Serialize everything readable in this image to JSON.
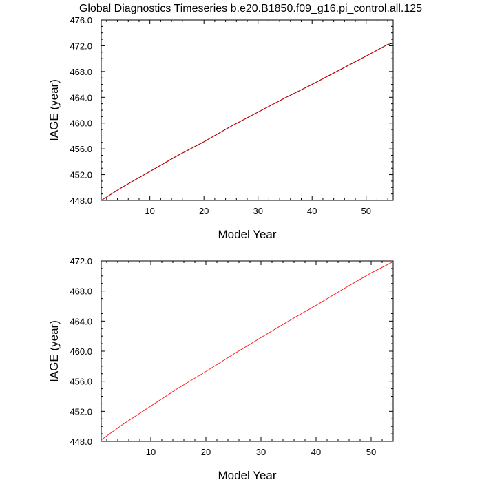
{
  "title": "Global Diagnostics Timeseries b.e20.B1850.f09_g16.pi_control.all.125",
  "chart_data": [
    {
      "type": "line",
      "xlabel": "Model Year",
      "ylabel": "IAGE (year)",
      "xlim": [
        1,
        55
      ],
      "ylim": [
        448.0,
        476.0
      ],
      "xticks": [
        10,
        20,
        30,
        40,
        50
      ],
      "xtick_labels": [
        "10",
        "20",
        "30",
        "40",
        "50"
      ],
      "yticks": [
        448,
        452,
        456,
        460,
        464,
        468,
        472,
        476
      ],
      "ytick_labels": [
        "448.0",
        "452.0",
        "456.0",
        "460.0",
        "464.0",
        "468.0",
        "472.0",
        "476.0"
      ],
      "series": [
        {
          "color": "#000000",
          "x": [
            1,
            5,
            10,
            15,
            20,
            25,
            30,
            35,
            40,
            45,
            50,
            54,
            55
          ],
          "y": [
            448.0,
            450.1,
            452.5,
            454.9,
            457.1,
            459.5,
            461.7,
            463.9,
            466.0,
            468.2,
            470.4,
            472.2,
            472.4
          ]
        },
        {
          "color": "#cc0000",
          "x": [
            1,
            5,
            10,
            15,
            20,
            25,
            30,
            35,
            40,
            45,
            50,
            54
          ],
          "y": [
            448.0,
            450.1,
            452.5,
            454.9,
            457.1,
            459.5,
            461.7,
            463.9,
            466.0,
            468.2,
            470.4,
            472.2
          ]
        }
      ]
    },
    {
      "type": "line",
      "xlabel": "Model Year",
      "ylabel": "IAGE (year)",
      "xlim": [
        1,
        54
      ],
      "ylim": [
        448.0,
        472.0
      ],
      "xticks": [
        10,
        20,
        30,
        40,
        50
      ],
      "xtick_labels": [
        "10",
        "20",
        "30",
        "40",
        "50"
      ],
      "yticks": [
        448,
        452,
        456,
        460,
        464,
        468,
        472
      ],
      "ytick_labels": [
        "448.0",
        "452.0",
        "456.0",
        "460.0",
        "464.0",
        "468.0",
        "472.0"
      ],
      "series": [
        {
          "color": "#ff2020",
          "x": [
            1,
            5,
            10,
            15,
            20,
            25,
            30,
            35,
            40,
            45,
            50,
            54
          ],
          "y": [
            448.2,
            450.3,
            452.7,
            455.1,
            457.3,
            459.6,
            461.8,
            464.0,
            466.1,
            468.3,
            470.4,
            471.9
          ]
        }
      ]
    }
  ]
}
